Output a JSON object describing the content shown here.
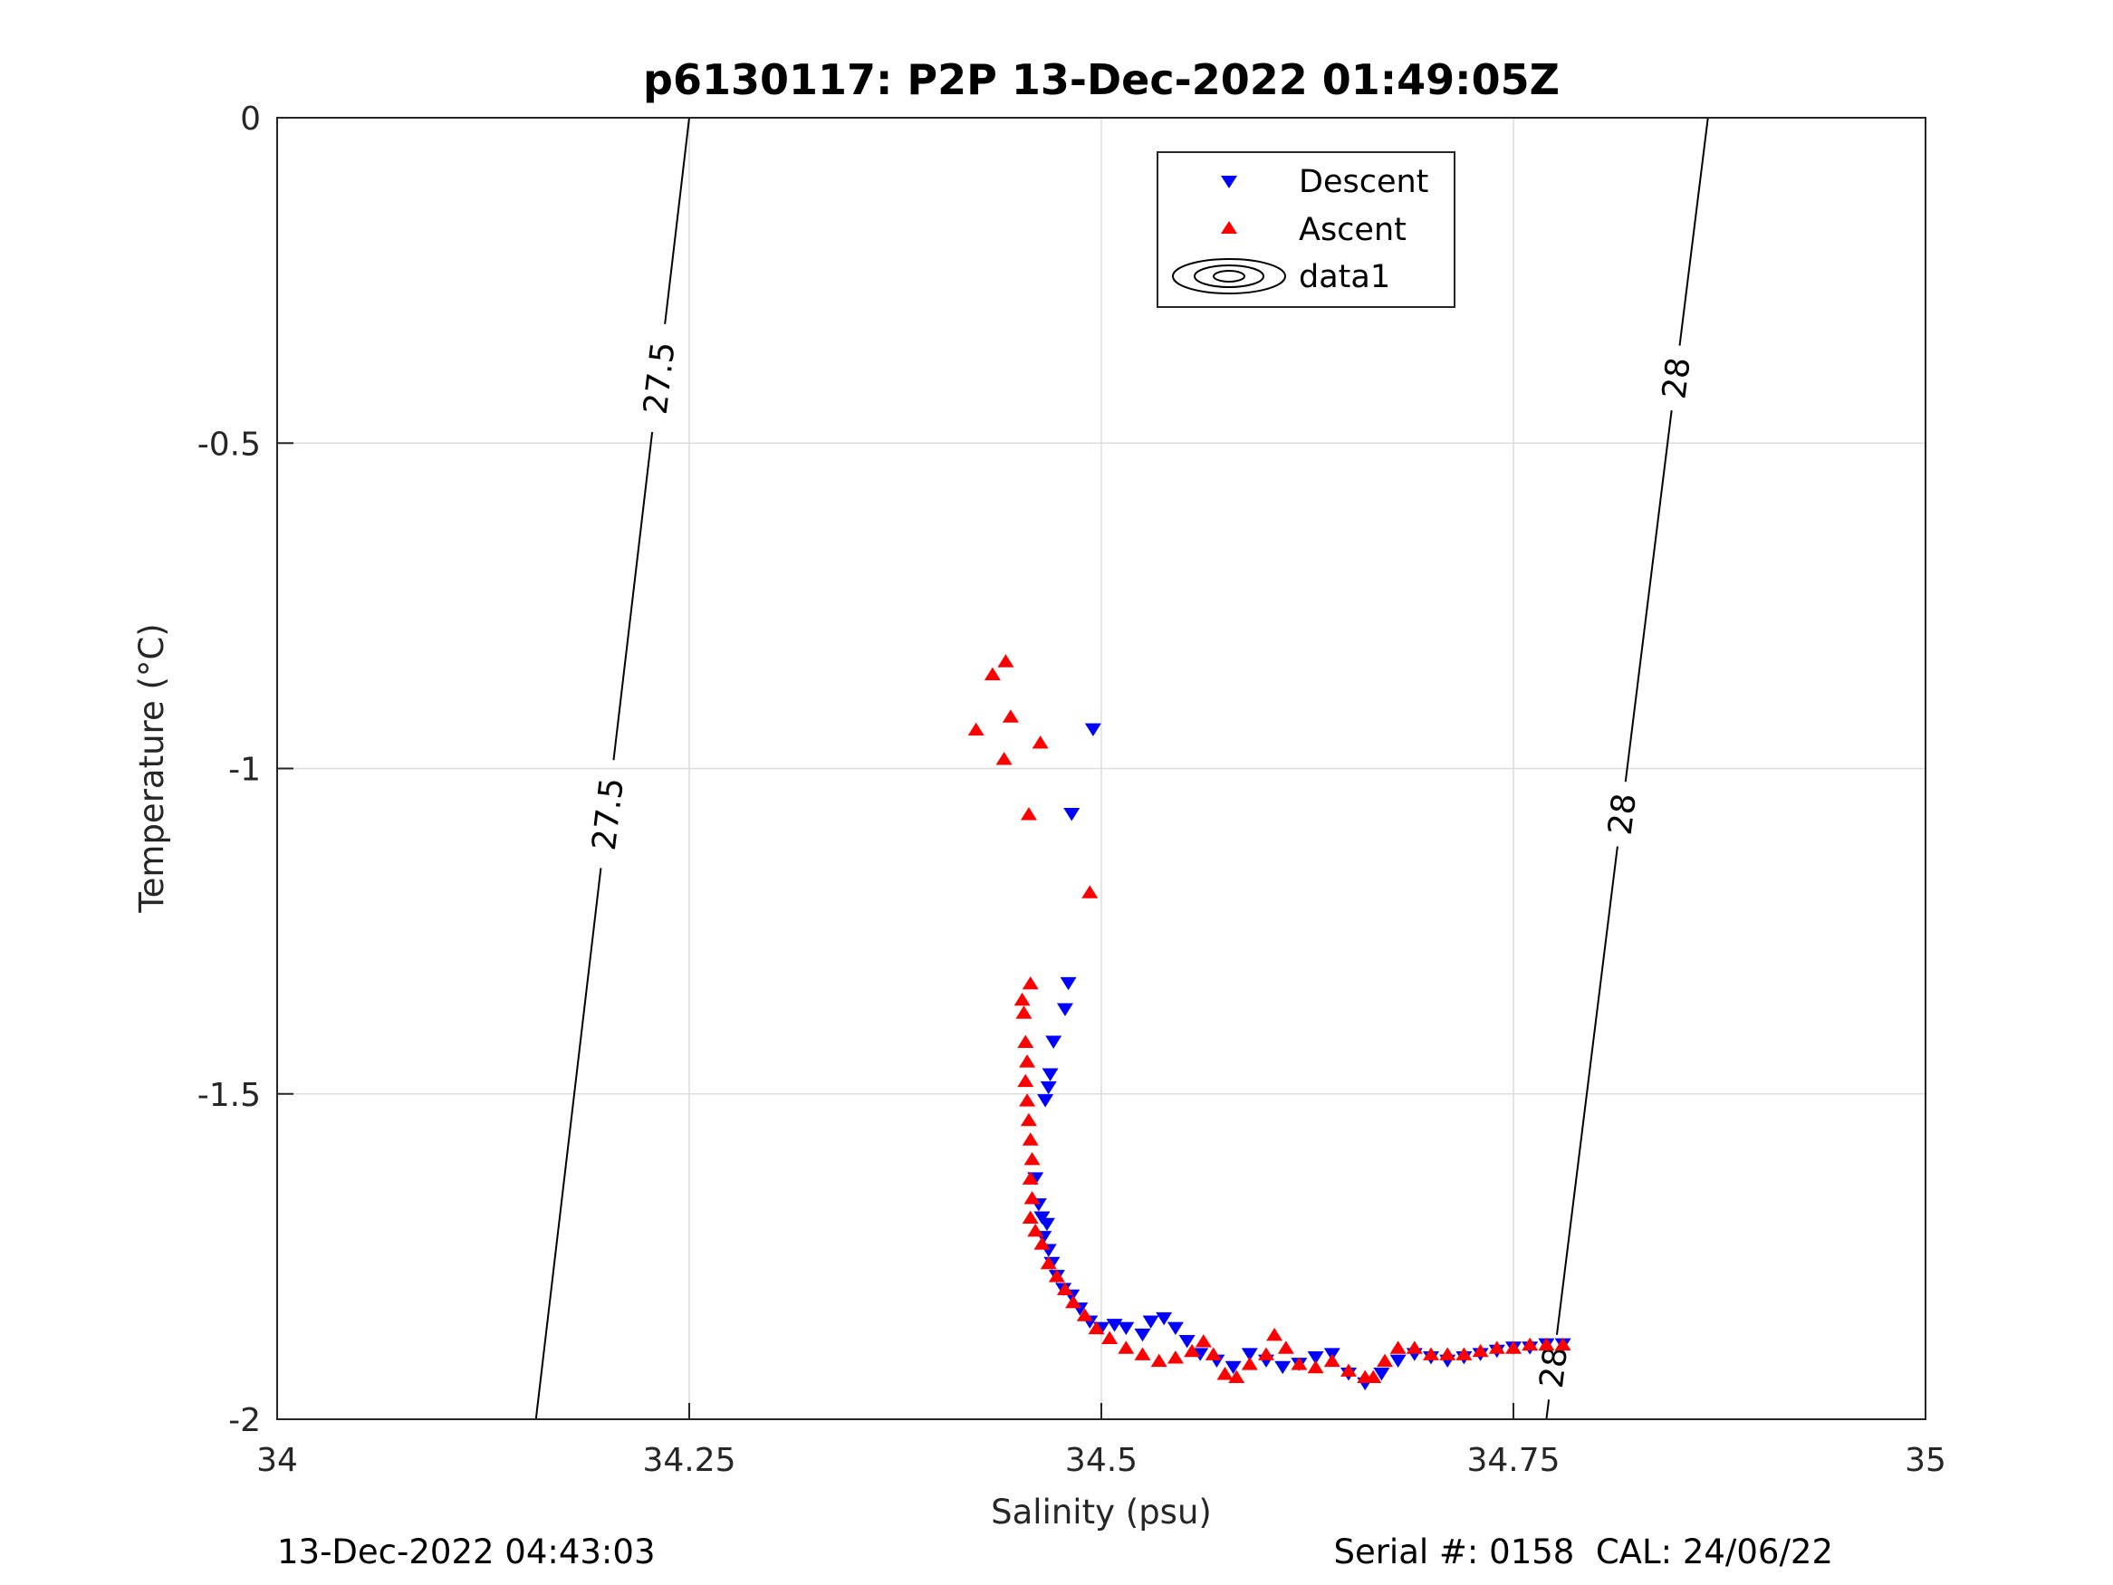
{
  "chart_data": {
    "type": "scatter",
    "title": "p6130117: P2P 13-Dec-2022 01:49:05Z",
    "xlabel": "Salinity (psu)",
    "ylabel": "Temperature (°C)",
    "xlim": [
      34,
      35
    ],
    "ylim": [
      -2,
      0
    ],
    "xticks": [
      34,
      34.25,
      34.5,
      34.75,
      35
    ],
    "xtick_labels": [
      "34",
      "34.25",
      "34.5",
      "34.75",
      "35"
    ],
    "yticks": [
      0,
      -0.5,
      -1,
      -1.5,
      -2
    ],
    "ytick_labels": [
      "0",
      "-0.5",
      "-1",
      "-1.5",
      "-2"
    ],
    "grid": true,
    "legend_position": "top-center",
    "legend": [
      "Descent",
      "Ascent",
      "data1"
    ],
    "colors": {
      "descent": "#0000ff",
      "ascent": "#ff0000",
      "contour": "#000000",
      "grid": "#dcdcdc"
    },
    "series": [
      {
        "name": "Descent",
        "marker": "triangle-down",
        "points": [
          [
            34.495,
            -0.94
          ],
          [
            34.482,
            -1.07
          ],
          [
            34.48,
            -1.33
          ],
          [
            34.478,
            -1.37
          ],
          [
            34.471,
            -1.42
          ],
          [
            34.469,
            -1.47
          ],
          [
            34.468,
            -1.49
          ],
          [
            34.466,
            -1.51
          ],
          [
            34.46,
            -1.63
          ],
          [
            34.462,
            -1.67
          ],
          [
            34.464,
            -1.69
          ],
          [
            34.467,
            -1.7
          ],
          [
            34.465,
            -1.72
          ],
          [
            34.468,
            -1.74
          ],
          [
            34.47,
            -1.76
          ],
          [
            34.473,
            -1.78
          ],
          [
            34.477,
            -1.8
          ],
          [
            34.482,
            -1.81
          ],
          [
            34.487,
            -1.83
          ],
          [
            34.493,
            -1.85
          ],
          [
            34.5,
            -1.86
          ],
          [
            34.508,
            -1.855
          ],
          [
            34.515,
            -1.86
          ],
          [
            34.525,
            -1.87
          ],
          [
            34.53,
            -1.85
          ],
          [
            34.538,
            -1.845
          ],
          [
            34.545,
            -1.86
          ],
          [
            34.552,
            -1.88
          ],
          [
            34.56,
            -1.9
          ],
          [
            34.57,
            -1.91
          ],
          [
            34.58,
            -1.92
          ],
          [
            34.59,
            -1.9
          ],
          [
            34.6,
            -1.91
          ],
          [
            34.61,
            -1.92
          ],
          [
            34.62,
            -1.915
          ],
          [
            34.63,
            -1.905
          ],
          [
            34.64,
            -1.9
          ],
          [
            34.65,
            -1.93
          ],
          [
            34.66,
            -1.945
          ],
          [
            34.67,
            -1.93
          ],
          [
            34.68,
            -1.91
          ],
          [
            34.69,
            -1.9
          ],
          [
            34.7,
            -1.905
          ],
          [
            34.71,
            -1.91
          ],
          [
            34.72,
            -1.905
          ],
          [
            34.73,
            -1.9
          ],
          [
            34.74,
            -1.895
          ],
          [
            34.75,
            -1.89
          ],
          [
            34.76,
            -1.89
          ],
          [
            34.77,
            -1.885
          ],
          [
            34.78,
            -1.885
          ]
        ]
      },
      {
        "name": "Ascent",
        "marker": "triangle-up",
        "points": [
          [
            34.442,
            -0.835
          ],
          [
            34.434,
            -0.855
          ],
          [
            34.445,
            -0.92
          ],
          [
            34.424,
            -0.94
          ],
          [
            34.463,
            -0.96
          ],
          [
            34.441,
            -0.985
          ],
          [
            34.456,
            -1.07
          ],
          [
            34.493,
            -1.19
          ],
          [
            34.457,
            -1.33
          ],
          [
            34.452,
            -1.355
          ],
          [
            34.453,
            -1.375
          ],
          [
            34.454,
            -1.42
          ],
          [
            34.455,
            -1.45
          ],
          [
            34.454,
            -1.48
          ],
          [
            34.455,
            -1.51
          ],
          [
            34.456,
            -1.54
          ],
          [
            34.457,
            -1.57
          ],
          [
            34.458,
            -1.6
          ],
          [
            34.457,
            -1.63
          ],
          [
            34.458,
            -1.66
          ],
          [
            34.457,
            -1.69
          ],
          [
            34.46,
            -1.71
          ],
          [
            34.464,
            -1.73
          ],
          [
            34.468,
            -1.76
          ],
          [
            34.473,
            -1.78
          ],
          [
            34.478,
            -1.8
          ],
          [
            34.483,
            -1.82
          ],
          [
            34.49,
            -1.84
          ],
          [
            34.497,
            -1.86
          ],
          [
            34.505,
            -1.875
          ],
          [
            34.515,
            -1.89
          ],
          [
            34.525,
            -1.9
          ],
          [
            34.535,
            -1.91
          ],
          [
            34.545,
            -1.905
          ],
          [
            34.555,
            -1.895
          ],
          [
            34.562,
            -1.88
          ],
          [
            34.568,
            -1.9
          ],
          [
            34.575,
            -1.93
          ],
          [
            34.582,
            -1.935
          ],
          [
            34.59,
            -1.915
          ],
          [
            34.6,
            -1.9
          ],
          [
            34.605,
            -1.87
          ],
          [
            34.612,
            -1.89
          ],
          [
            34.62,
            -1.915
          ],
          [
            34.63,
            -1.92
          ],
          [
            34.64,
            -1.91
          ],
          [
            34.65,
            -1.925
          ],
          [
            34.66,
            -1.935
          ],
          [
            34.665,
            -1.935
          ],
          [
            34.672,
            -1.91
          ],
          [
            34.68,
            -1.89
          ],
          [
            34.69,
            -1.89
          ],
          [
            34.7,
            -1.9
          ],
          [
            34.71,
            -1.9
          ],
          [
            34.72,
            -1.9
          ],
          [
            34.73,
            -1.895
          ],
          [
            34.74,
            -1.89
          ],
          [
            34.75,
            -1.89
          ],
          [
            34.76,
            -1.885
          ],
          [
            34.77,
            -1.885
          ],
          [
            34.78,
            -1.885
          ]
        ]
      }
    ],
    "contours": [
      {
        "level": "27.5",
        "line": [
          [
            34.157,
            -2
          ],
          [
            34.25,
            0
          ]
        ],
        "labels": [
          -1.07,
          -0.4
        ]
      },
      {
        "level": "28",
        "line": [
          [
            34.77,
            -2
          ],
          [
            34.868,
            0
          ]
        ],
        "labels": [
          -1.92,
          -1.07,
          -0.4
        ]
      }
    ]
  },
  "footer": {
    "timestamp": "13-Dec-2022 04:43:03",
    "serial": "Serial #: 0158  CAL: 24/06/22"
  }
}
